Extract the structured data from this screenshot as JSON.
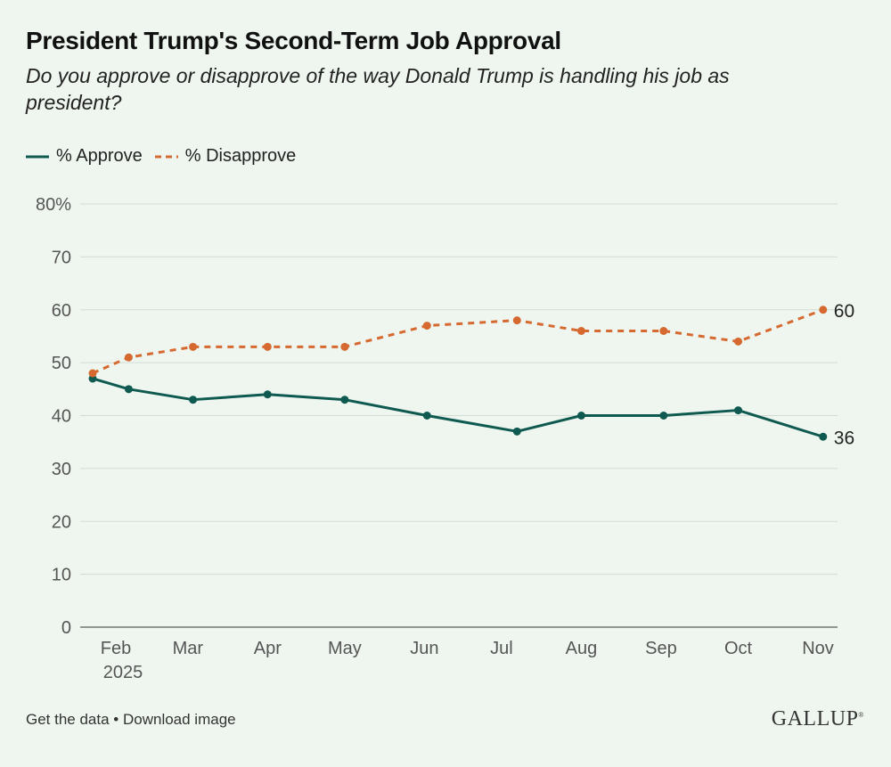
{
  "chart_data": {
    "type": "line",
    "title": "President Trump's Second-Term Job Approval",
    "subtitle": "Do you approve or disapprove of the way Donald Trump is handling his job as president?",
    "x": [
      "2025-01-23",
      "2025-02-06",
      "2025-03-03",
      "2025-04-01",
      "2025-05-01",
      "2025-06-02",
      "2025-07-07",
      "2025-08-01",
      "2025-09-02",
      "2025-10-01",
      "2025-11-03"
    ],
    "series": [
      {
        "name": "% Approve",
        "values": [
          47,
          45,
          43,
          44,
          43,
          40,
          37,
          40,
          40,
          41,
          36
        ],
        "color": "#0f5a50",
        "style": "solid",
        "end_label": "36"
      },
      {
        "name": "% Disapprove",
        "values": [
          48,
          51,
          53,
          53,
          53,
          57,
          58,
          56,
          56,
          54,
          60
        ],
        "color": "#d5692f",
        "style": "dashed",
        "end_label": "60"
      }
    ],
    "x_ticks": [
      {
        "date": "2025-02-01",
        "label": "Feb",
        "sublabel": "2025"
      },
      {
        "date": "2025-03-01",
        "label": "Mar"
      },
      {
        "date": "2025-04-01",
        "label": "Apr"
      },
      {
        "date": "2025-05-01",
        "label": "May"
      },
      {
        "date": "2025-06-01",
        "label": "Jun"
      },
      {
        "date": "2025-07-01",
        "label": "Jul"
      },
      {
        "date": "2025-08-01",
        "label": "Aug"
      },
      {
        "date": "2025-09-01",
        "label": "Sep"
      },
      {
        "date": "2025-10-01",
        "label": "Oct"
      },
      {
        "date": "2025-11-01",
        "label": "Nov"
      }
    ],
    "y_ticks": [
      "0",
      "10",
      "20",
      "30",
      "40",
      "50",
      "60",
      "70",
      "80%"
    ],
    "ylim": [
      0,
      80
    ],
    "grid": true,
    "legend": "top-left",
    "xlabel": "",
    "ylabel": ""
  },
  "footer": {
    "get_data": "Get the data",
    "separator": " • ",
    "download": "Download image"
  },
  "logo": "GALLUP",
  "background": "#eef6ef"
}
